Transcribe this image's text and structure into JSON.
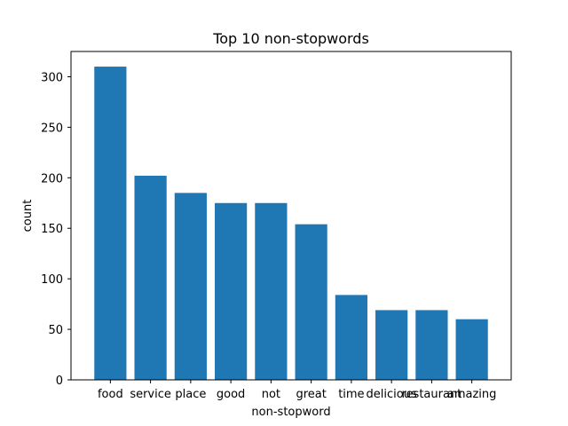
{
  "chart_data": {
    "type": "bar",
    "title": "Top 10 non-stopwords",
    "xlabel": "non-stopword",
    "ylabel": "count",
    "categories": [
      "food",
      "service",
      "place",
      "good",
      "not",
      "great",
      "time",
      "delicious",
      "restaurant",
      "amazing"
    ],
    "values": [
      310,
      202,
      185,
      175,
      175,
      154,
      84,
      69,
      69,
      60
    ],
    "ylim": [
      0,
      325
    ],
    "yticks": [
      0,
      50,
      100,
      150,
      200,
      250,
      300
    ],
    "bar_color": "#1f77b4",
    "grid": false,
    "legend": "none"
  }
}
